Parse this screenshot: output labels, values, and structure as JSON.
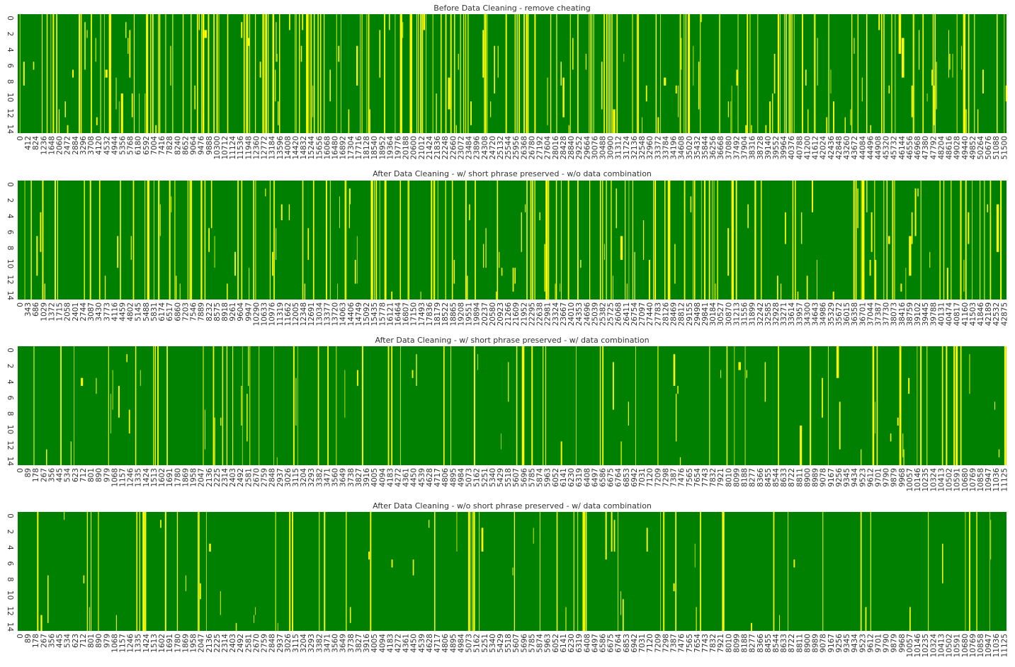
{
  "chart_data": [
    {
      "type": "heatmap",
      "title": "Before Data Cleaning - remove cheating",
      "xlabel": "",
      "ylabel": "",
      "y_ticks": [
        "0",
        "2",
        "4",
        "6",
        "8",
        "10",
        "12",
        "14"
      ],
      "x_ticks": [
        "0",
        "412",
        "824",
        "1236",
        "1648",
        "2060",
        "2472",
        "2884",
        "3296",
        "3708",
        "4120",
        "4532",
        "4944",
        "5356",
        "5768",
        "6180",
        "6592",
        "7004",
        "7416",
        "7828",
        "8240",
        "8652",
        "9064",
        "9476",
        "9888",
        "10300",
        "10712",
        "11124",
        "11536",
        "11948",
        "12360",
        "12772",
        "13184",
        "13596",
        "14008",
        "14420",
        "14832",
        "15244",
        "15656",
        "16068",
        "16480",
        "16892",
        "17304",
        "17716",
        "18128",
        "18540",
        "18952",
        "19364",
        "19776",
        "20188",
        "20600",
        "21012",
        "21424",
        "21836",
        "22248",
        "22660",
        "23072",
        "23484",
        "23896",
        "24308",
        "24720",
        "25132",
        "25544",
        "25956",
        "26368",
        "26780",
        "27192",
        "27604",
        "28016",
        "28428",
        "28840",
        "29252",
        "29664",
        "30076",
        "30488",
        "30900",
        "31312",
        "31724",
        "32136",
        "32548",
        "32960",
        "33372",
        "33784",
        "34196",
        "34608",
        "35020",
        "35432",
        "35844",
        "36256",
        "36668",
        "37080",
        "37492",
        "37904",
        "38316",
        "38728",
        "39140",
        "39552",
        "39964",
        "40376",
        "40788",
        "41200",
        "41612",
        "42024",
        "42436",
        "42848",
        "43260",
        "43672",
        "44084",
        "44496",
        "44908",
        "45320",
        "45732",
        "46144",
        "46556",
        "46968",
        "47380",
        "47792",
        "48204",
        "48616",
        "49028",
        "49440",
        "49852",
        "50264",
        "50676",
        "51088",
        "51500"
      ],
      "legend": [
        "#ffff00",
        "#008000"
      ],
      "yellow_fraction": 0.24
    },
    {
      "type": "heatmap",
      "title": "After Data Cleaning - w/ short phrase preserved - w/o data combination",
      "xlabel": "",
      "ylabel": "",
      "y_ticks": [
        "0",
        "2",
        "4",
        "6",
        "8",
        "10",
        "12",
        "14"
      ],
      "x_ticks": [
        "0",
        "343",
        "686",
        "1029",
        "1372",
        "1715",
        "2058",
        "2401",
        "2744",
        "3087",
        "3430",
        "3773",
        "4116",
        "4459",
        "4802",
        "5145",
        "5488",
        "5831",
        "6174",
        "6517",
        "6860",
        "7203",
        "7546",
        "7889",
        "8232",
        "8575",
        "8918",
        "9261",
        "9604",
        "9947",
        "10290",
        "10633",
        "10976",
        "11319",
        "11662",
        "12005",
        "12348",
        "12691",
        "13034",
        "13377",
        "13720",
        "14063",
        "14406",
        "14749",
        "15092",
        "15435",
        "15778",
        "16121",
        "16464",
        "16807",
        "17150",
        "17493",
        "17836",
        "18179",
        "18522",
        "18865",
        "19208",
        "19551",
        "19894",
        "20237",
        "20580",
        "20923",
        "21266",
        "21609",
        "21952",
        "22295",
        "22638",
        "22981",
        "23324",
        "23667",
        "24010",
        "24353",
        "24696",
        "25039",
        "25382",
        "25725",
        "26068",
        "26411",
        "26754",
        "27097",
        "27440",
        "27783",
        "28126",
        "28469",
        "28812",
        "29155",
        "29498",
        "29841",
        "30184",
        "30527",
        "30870",
        "31213",
        "31556",
        "31899",
        "32242",
        "32585",
        "32928",
        "33271",
        "33614",
        "33957",
        "34300",
        "34643",
        "34986",
        "35329",
        "35672",
        "36015",
        "36358",
        "36701",
        "37044",
        "37387",
        "37730",
        "38073",
        "38416",
        "38759",
        "39102",
        "39445",
        "39788",
        "40131",
        "40474",
        "40817",
        "41160",
        "41503",
        "41846",
        "42189",
        "42532",
        "42875"
      ],
      "legend": [
        "#ffff00",
        "#008000"
      ],
      "yellow_fraction": 0.19
    },
    {
      "type": "heatmap",
      "title": "After Data Cleaning - w/ short phrase preserved - w/ data combination",
      "xlabel": "",
      "ylabel": "",
      "y_ticks": [
        "0",
        "2",
        "4",
        "6",
        "8",
        "10",
        "12",
        "14"
      ],
      "x_ticks": [
        "0",
        "89",
        "178",
        "267",
        "356",
        "445",
        "534",
        "623",
        "712",
        "801",
        "890",
        "979",
        "1068",
        "1157",
        "1246",
        "1335",
        "1424",
        "1513",
        "1602",
        "1691",
        "1780",
        "1869",
        "1958",
        "2047",
        "2136",
        "2225",
        "2314",
        "2403",
        "2492",
        "2581",
        "2670",
        "2759",
        "2848",
        "2937",
        "3026",
        "3115",
        "3204",
        "3293",
        "3382",
        "3471",
        "3560",
        "3649",
        "3738",
        "3827",
        "3916",
        "4005",
        "4094",
        "4183",
        "4272",
        "4361",
        "4450",
        "4539",
        "4628",
        "4717",
        "4806",
        "4895",
        "4984",
        "5073",
        "5162",
        "5251",
        "5340",
        "5429",
        "5518",
        "5607",
        "5696",
        "5785",
        "5874",
        "5963",
        "6052",
        "6141",
        "6230",
        "6319",
        "6408",
        "6497",
        "6586",
        "6675",
        "6764",
        "6853",
        "6942",
        "7031",
        "7120",
        "7209",
        "7298",
        "7387",
        "7476",
        "7565",
        "7654",
        "7743",
        "7832",
        "7921",
        "8010",
        "8099",
        "8188",
        "8277",
        "8366",
        "8455",
        "8544",
        "8633",
        "8722",
        "8811",
        "8900",
        "8989",
        "9078",
        "9167",
        "9256",
        "9345",
        "9434",
        "9523",
        "9612",
        "9701",
        "9790",
        "9879",
        "9968",
        "10057",
        "10146",
        "10235",
        "10324",
        "10413",
        "10502",
        "10591",
        "10680",
        "10769",
        "10858",
        "10947",
        "11036",
        "11125"
      ],
      "legend": [
        "#ffff00",
        "#008000"
      ],
      "yellow_fraction": 0.11
    },
    {
      "type": "heatmap",
      "title": "After Data Cleaning - w/o short phrase preserved - w/ data combination",
      "xlabel": "",
      "ylabel": "",
      "y_ticks": [
        "0",
        "2",
        "4",
        "6",
        "8",
        "10",
        "12",
        "14"
      ],
      "x_ticks": [
        "0",
        "89",
        "178",
        "267",
        "356",
        "445",
        "534",
        "623",
        "712",
        "801",
        "890",
        "979",
        "1068",
        "1157",
        "1246",
        "1335",
        "1424",
        "1513",
        "1602",
        "1691",
        "1780",
        "1869",
        "1958",
        "2047",
        "2136",
        "2225",
        "2314",
        "2403",
        "2492",
        "2581",
        "2670",
        "2759",
        "2848",
        "2937",
        "3026",
        "3115",
        "3204",
        "3293",
        "3382",
        "3471",
        "3560",
        "3649",
        "3738",
        "3827",
        "3916",
        "4005",
        "4094",
        "4183",
        "4272",
        "4361",
        "4450",
        "4539",
        "4628",
        "4717",
        "4806",
        "4895",
        "4984",
        "5073",
        "5162",
        "5251",
        "5340",
        "5429",
        "5518",
        "5607",
        "5696",
        "5785",
        "5874",
        "5963",
        "6052",
        "6141",
        "6230",
        "6319",
        "6408",
        "6497",
        "6586",
        "6675",
        "6764",
        "6853",
        "6942",
        "7031",
        "7120",
        "7209",
        "7298",
        "7387",
        "7476",
        "7565",
        "7654",
        "7743",
        "7832",
        "7921",
        "8010",
        "8099",
        "8188",
        "8277",
        "8366",
        "8455",
        "8544",
        "8633",
        "8722",
        "8811",
        "8900",
        "8989",
        "9078",
        "9167",
        "9256",
        "9345",
        "9434",
        "9523",
        "9612",
        "9701",
        "9790",
        "9879",
        "9968",
        "10057",
        "10146",
        "10235",
        "10324",
        "10413",
        "10502",
        "10591",
        "10680",
        "10769",
        "10858",
        "10947",
        "11036",
        "11125"
      ],
      "legend": [
        "#ffff00",
        "#008000"
      ],
      "yellow_fraction": 0.1
    }
  ]
}
